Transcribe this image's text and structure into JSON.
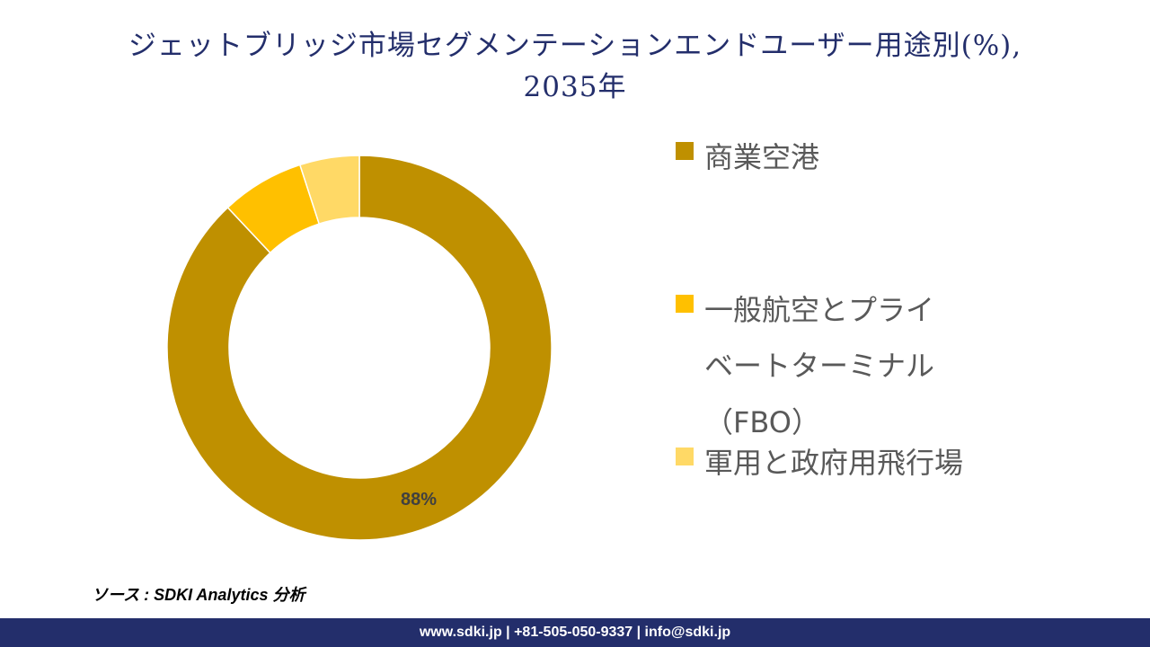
{
  "title": {
    "line1": "ジェットブリッジ市場セグメンテーションエンドユーザー用途別(%),",
    "line2": "2035年"
  },
  "chart_data": {
    "type": "pie",
    "subtype": "donut",
    "title": "ジェットブリッジ市場セグメンテーションエンドユーザー用途別(%), 2035年",
    "categories": [
      "商業空港",
      "一般航空とプライベートターミナル（FBO）",
      "軍用と政府用飛行場"
    ],
    "values": [
      88,
      7,
      5
    ],
    "colors": [
      "#bf9000",
      "#ffc000",
      "#ffd966"
    ],
    "data_labels": [
      "88%",
      "",
      ""
    ],
    "legend_position": "right"
  },
  "legend": {
    "items": [
      {
        "label": "商業空港",
        "color": "#bf9000"
      },
      {
        "label_lines": [
          "一般航空とプライ",
          "ベートターミナル",
          "（FBO）"
        ],
        "color": "#ffc000"
      },
      {
        "label": "軍用と政府用飛行場",
        "color": "#ffd966"
      }
    ]
  },
  "source": "ソース : SDKI Analytics 分析",
  "footer": "www.sdki.jp | +81-505-050-9337 | info@sdki.jp",
  "data_label_main": "88%"
}
